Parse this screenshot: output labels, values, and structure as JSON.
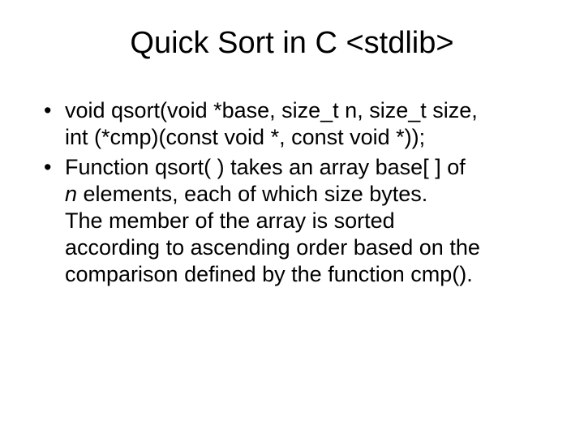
{
  "title": "Quick Sort in C <stdlib>",
  "bullets": [
    {
      "lines": [
        "void qsort(void *base, size_t n, size_t size,",
        "int (*cmp)(const void *, const void *));"
      ]
    },
    {
      "lines_rich": [
        {
          "pre": "Function qsort( ) takes an array base[ ] of"
        },
        {
          "italic": "n",
          "post": " elements, each of which size bytes."
        },
        {
          "pre": "The member of the array is sorted"
        },
        {
          "pre": "according to ascending order based on the"
        },
        {
          "pre": "comparison defined by the function cmp()."
        }
      ]
    }
  ],
  "style": {
    "background_color": "#ffffff",
    "text_color": "#000000",
    "font_family": "Arial, Helvetica, sans-serif",
    "title_fontsize": 38,
    "body_fontsize": 27,
    "line_height": 1.22
  }
}
